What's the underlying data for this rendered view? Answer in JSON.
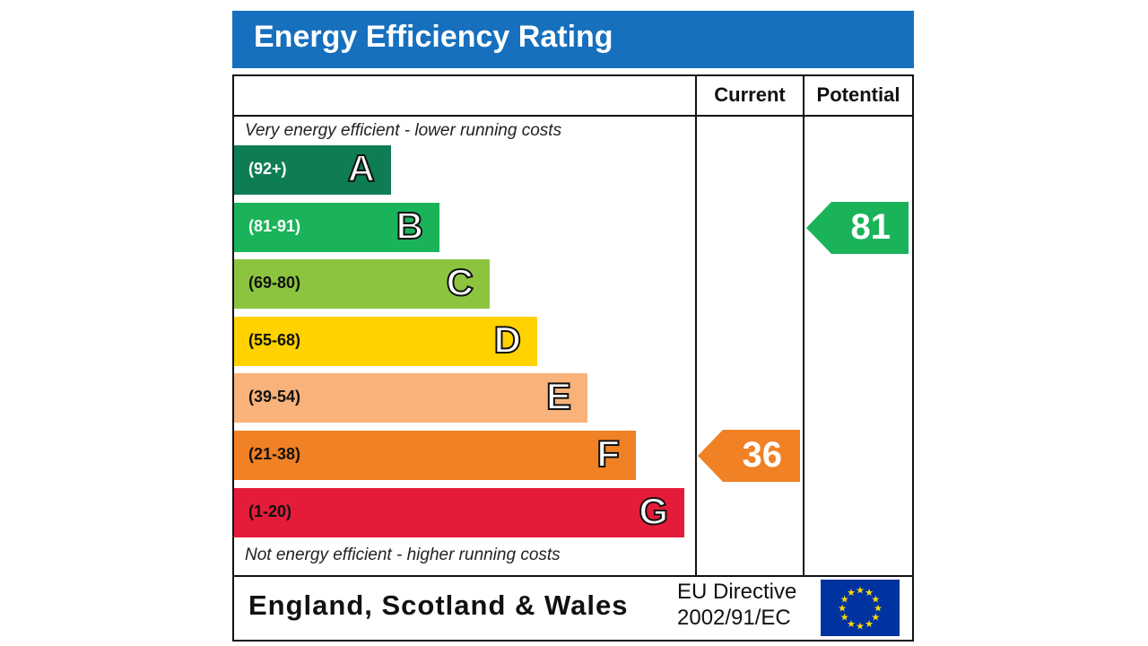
{
  "title": "Energy Efficiency Rating",
  "chart_data": {
    "type": "bar",
    "title": "Energy Efficiency Rating",
    "columns": [
      "Current",
      "Potential"
    ],
    "top_note": "Very energy efficient - lower running costs",
    "bottom_note": "Not energy efficient - higher running costs",
    "bands": [
      {
        "letter": "A",
        "range": "(92+)",
        "min": 92,
        "max": 100,
        "color": "#0f7d54",
        "text_color": "#ffffff"
      },
      {
        "letter": "B",
        "range": "(81-91)",
        "min": 81,
        "max": 91,
        "color": "#1bb35a",
        "text_color": "#ffffff"
      },
      {
        "letter": "C",
        "range": "(69-80)",
        "min": 69,
        "max": 80,
        "color": "#8cc43f",
        "text_color": "#111111"
      },
      {
        "letter": "D",
        "range": "(55-68)",
        "min": 55,
        "max": 68,
        "color": "#ffd200",
        "text_color": "#111111"
      },
      {
        "letter": "E",
        "range": "(39-54)",
        "min": 39,
        "max": 54,
        "color": "#f8b27a",
        "text_color": "#111111"
      },
      {
        "letter": "F",
        "range": "(21-38)",
        "min": 21,
        "max": 38,
        "color": "#f08124",
        "text_color": "#111111"
      },
      {
        "letter": "G",
        "range": "(1-20)",
        "min": 1,
        "max": 20,
        "color": "#e41c3a",
        "text_color": "#111111"
      }
    ],
    "current": {
      "value": "36",
      "color": "#f08124"
    },
    "potential": {
      "value": "81",
      "color": "#1bb35a"
    }
  },
  "footer": {
    "region": "England, Scotland & Wales",
    "directive_line1": "EU Directive",
    "directive_line2": "2002/91/EC"
  }
}
